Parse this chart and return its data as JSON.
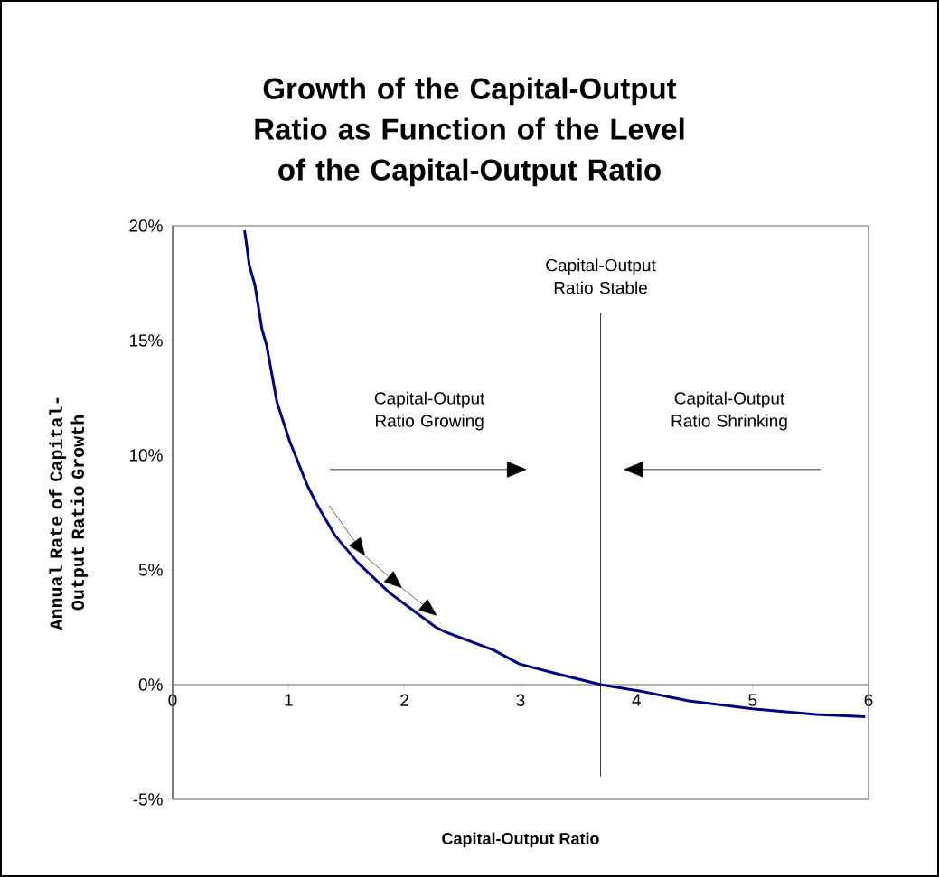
{
  "chart_data": {
    "type": "line",
    "title": "Growth of the Capital-Output Ratio as Function of the Level of the Capital-Output Ratio",
    "xlabel": "Capital-Output Ratio",
    "ylabel": "Annual Rate of Capital-Output Ratio Growth",
    "x": [
      0.62,
      0.64,
      0.66,
      0.71,
      0.77,
      0.81,
      0.9,
      1.01,
      1.16,
      1.25,
      1.4,
      1.6,
      1.87,
      2.11,
      2.27,
      2.35,
      2.77,
      2.99,
      3.33,
      3.69,
      4.05,
      4.44,
      5.0,
      5.55,
      5.97
    ],
    "series": [
      {
        "color": "#000080",
        "values": [
          19.8,
          19.1,
          18.3,
          17.4,
          15.5,
          14.8,
          12.3,
          10.6,
          8.7,
          7.8,
          6.5,
          5.3,
          4.0,
          3.1,
          2.5,
          2.3,
          1.5,
          0.9,
          0.45,
          0.0,
          -0.3,
          -0.7,
          -1.05,
          -1.3,
          -1.4
        ]
      }
    ],
    "xlim": [
      0,
      6
    ],
    "ylim": [
      -5,
      20
    ],
    "xticks": [
      0,
      1,
      2,
      3,
      4,
      5,
      6
    ],
    "yticks": [
      {
        "value": -5,
        "label": "-5%"
      },
      {
        "value": 0,
        "label": "0%"
      },
      {
        "value": 5,
        "label": "5%"
      },
      {
        "value": 10,
        "label": "10%"
      },
      {
        "value": 15,
        "label": "15%"
      },
      {
        "value": 20,
        "label": "20%"
      }
    ],
    "ref_lines": [
      {
        "axis": "x",
        "value": 3.69,
        "label": "Capital-Output Ratio Stable",
        "color": "#000000"
      }
    ],
    "annotations": [
      "Capital-Output Ratio Growing",
      "Capital-Output Ratio Shrinking"
    ],
    "grid": false,
    "marker": "none",
    "line_style": "solid"
  }
}
